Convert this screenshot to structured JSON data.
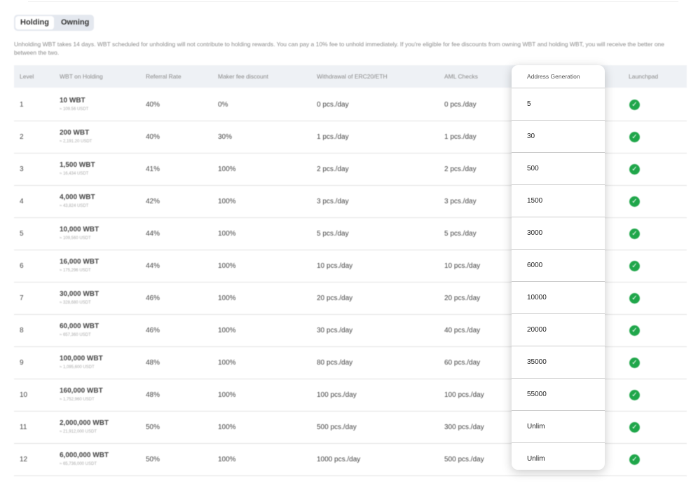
{
  "tabs": {
    "holding": "Holding",
    "owning": "Owning"
  },
  "note": "Unholding WBT takes 14 days. WBT scheduled for unholding will not contribute to holding rewards. You can pay a 10% fee to unhold immediately. If you're eligible for fee discounts from owning WBT and holding WBT, you will receive the better one between the two.",
  "columns": [
    "Level",
    "WBT on Holding",
    "Referral Rate",
    "Maker fee discount",
    "Withdrawal of ERC20/ETH",
    "AML Checks",
    "Address Generation",
    "Launchpad"
  ],
  "accent": "#1fa64a",
  "rows": [
    {
      "level": "1",
      "wbt": "10 WBT",
      "usdt": "≈ 109.56 USDT",
      "referral": "40%",
      "maker": "0%",
      "withdrawal": "0 pcs./day",
      "aml": "0 pcs./day",
      "address": "5",
      "launchpad": "check"
    },
    {
      "level": "2",
      "wbt": "200 WBT",
      "usdt": "≈ 2,191.20 USDT",
      "referral": "40%",
      "maker": "30%",
      "withdrawal": "1 pcs./day",
      "aml": "1 pcs./day",
      "address": "30",
      "launchpad": "check"
    },
    {
      "level": "3",
      "wbt": "1,500 WBT",
      "usdt": "≈ 16,434 USDT",
      "referral": "41%",
      "maker": "100%",
      "withdrawal": "2 pcs./day",
      "aml": "2 pcs./day",
      "address": "500",
      "launchpad": "check"
    },
    {
      "level": "4",
      "wbt": "4,000 WBT",
      "usdt": "≈ 43,824 USDT",
      "referral": "42%",
      "maker": "100%",
      "withdrawal": "3 pcs./day",
      "aml": "3 pcs./day",
      "address": "1500",
      "launchpad": "check"
    },
    {
      "level": "5",
      "wbt": "10,000 WBT",
      "usdt": "≈ 109,560 USDT",
      "referral": "44%",
      "maker": "100%",
      "withdrawal": "5 pcs./day",
      "aml": "5 pcs./day",
      "address": "3000",
      "launchpad": "check"
    },
    {
      "level": "6",
      "wbt": "16,000 WBT",
      "usdt": "≈ 175,296 USDT",
      "referral": "44%",
      "maker": "100%",
      "withdrawal": "10 pcs./day",
      "aml": "10 pcs./day",
      "address": "6000",
      "launchpad": "check"
    },
    {
      "level": "7",
      "wbt": "30,000 WBT",
      "usdt": "≈ 328,680 USDT",
      "referral": "46%",
      "maker": "100%",
      "withdrawal": "20 pcs./day",
      "aml": "20 pcs./day",
      "address": "10000",
      "launchpad": "check"
    },
    {
      "level": "8",
      "wbt": "60,000 WBT",
      "usdt": "≈ 657,360 USDT",
      "referral": "46%",
      "maker": "100%",
      "withdrawal": "30 pcs./day",
      "aml": "40 pcs./day",
      "address": "20000",
      "launchpad": "check"
    },
    {
      "level": "9",
      "wbt": "100,000 WBT",
      "usdt": "≈ 1,095,600 USDT",
      "referral": "48%",
      "maker": "100%",
      "withdrawal": "80 pcs./day",
      "aml": "60 pcs./day",
      "address": "35000",
      "launchpad": "check"
    },
    {
      "level": "10",
      "wbt": "160,000 WBT",
      "usdt": "≈ 1,752,960 USDT",
      "referral": "48%",
      "maker": "100%",
      "withdrawal": "100 pcs./day",
      "aml": "100 pcs./day",
      "address": "55000",
      "launchpad": "check"
    },
    {
      "level": "11",
      "wbt": "2,000,000 WBT",
      "usdt": "≈ 21,912,000 USDT",
      "referral": "50%",
      "maker": "100%",
      "withdrawal": "500 pcs./day",
      "aml": "300 pcs./day",
      "address": "Unlim",
      "launchpad": "check"
    },
    {
      "level": "12",
      "wbt": "6,000,000 WBT",
      "usdt": "≈ 65,736,000 USDT",
      "referral": "50%",
      "maker": "100%",
      "withdrawal": "1000 pcs./day",
      "aml": "500 pcs./day",
      "address": "Unlim",
      "launchpad": "check"
    }
  ]
}
